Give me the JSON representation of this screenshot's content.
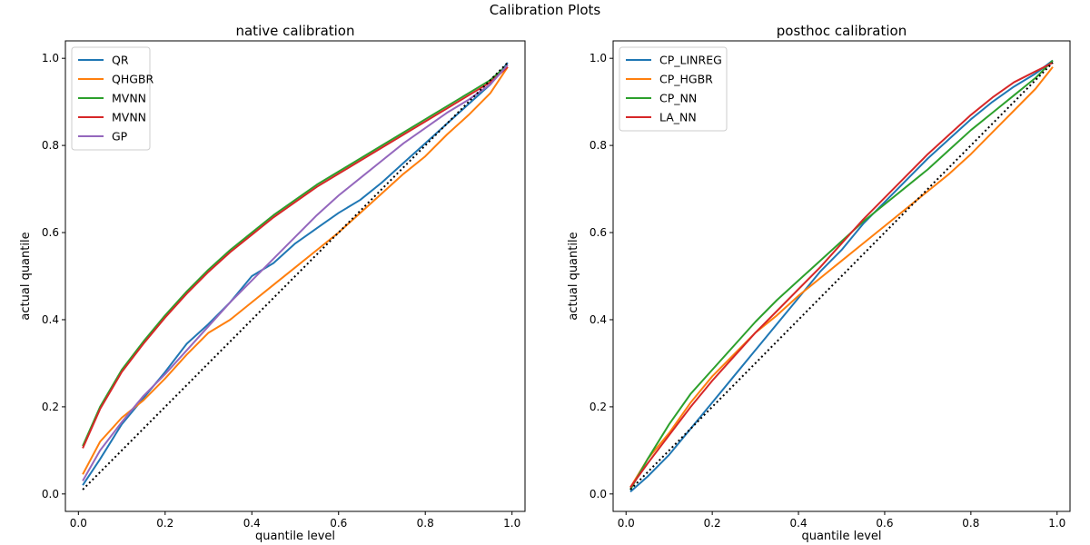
{
  "figure": {
    "title": "Calibration Plots"
  },
  "colors": {
    "blue": "#1f77b4",
    "orange": "#ff7f0e",
    "green": "#2ca02c",
    "red": "#d62728",
    "purple": "#9467bd",
    "reference": "#000000"
  },
  "chart_data": [
    {
      "type": "line",
      "title": "native calibration",
      "xlabel": "quantile level",
      "ylabel": "actual quantile",
      "xlim": [
        -0.03,
        1.03
      ],
      "ylim": [
        -0.04,
        1.04
      ],
      "xticks": [
        0.0,
        0.2,
        0.4,
        0.6,
        0.8,
        1.0
      ],
      "yticks": [
        0.0,
        0.2,
        0.4,
        0.6,
        0.8,
        1.0
      ],
      "xtick_labels": [
        "0.0",
        "0.2",
        "0.4",
        "0.6",
        "0.8",
        "1.0"
      ],
      "ytick_labels": [
        "0.0",
        "0.2",
        "0.4",
        "0.6",
        "0.8",
        "1.0"
      ],
      "grid": false,
      "legend_position": "top-left",
      "reference_line": {
        "style": "dotted",
        "x": [
          0.01,
          0.99
        ],
        "y": [
          0.01,
          0.99
        ]
      },
      "series": [
        {
          "name": "QR",
          "color": "#1f77b4",
          "x": [
            0.01,
            0.05,
            0.1,
            0.15,
            0.2,
            0.25,
            0.3,
            0.35,
            0.4,
            0.45,
            0.5,
            0.55,
            0.6,
            0.65,
            0.7,
            0.75,
            0.8,
            0.85,
            0.9,
            0.95,
            0.99
          ],
          "y": [
            0.02,
            0.08,
            0.16,
            0.22,
            0.28,
            0.345,
            0.39,
            0.44,
            0.5,
            0.53,
            0.575,
            0.61,
            0.645,
            0.675,
            0.715,
            0.76,
            0.805,
            0.85,
            0.895,
            0.94,
            0.99
          ]
        },
        {
          "name": "QHGBR",
          "color": "#ff7f0e",
          "x": [
            0.01,
            0.05,
            0.1,
            0.15,
            0.2,
            0.25,
            0.3,
            0.35,
            0.4,
            0.45,
            0.5,
            0.55,
            0.6,
            0.65,
            0.7,
            0.75,
            0.8,
            0.85,
            0.9,
            0.95,
            0.99
          ],
          "y": [
            0.045,
            0.12,
            0.175,
            0.215,
            0.265,
            0.32,
            0.37,
            0.4,
            0.44,
            0.48,
            0.52,
            0.56,
            0.6,
            0.645,
            0.69,
            0.735,
            0.775,
            0.825,
            0.87,
            0.92,
            0.98
          ]
        },
        {
          "name": "MVNN",
          "color": "#2ca02c",
          "x": [
            0.01,
            0.05,
            0.1,
            0.15,
            0.2,
            0.25,
            0.3,
            0.35,
            0.4,
            0.45,
            0.5,
            0.55,
            0.6,
            0.65,
            0.7,
            0.75,
            0.8,
            0.85,
            0.9,
            0.95,
            0.99
          ],
          "y": [
            0.11,
            0.2,
            0.285,
            0.35,
            0.41,
            0.465,
            0.515,
            0.56,
            0.6,
            0.64,
            0.675,
            0.71,
            0.74,
            0.77,
            0.8,
            0.83,
            0.86,
            0.89,
            0.92,
            0.95,
            0.985
          ]
        },
        {
          "name": "MVNN",
          "color": "#d62728",
          "x": [
            0.01,
            0.05,
            0.1,
            0.15,
            0.2,
            0.25,
            0.3,
            0.35,
            0.4,
            0.45,
            0.5,
            0.55,
            0.6,
            0.65,
            0.7,
            0.75,
            0.8,
            0.85,
            0.9,
            0.95,
            0.99
          ],
          "y": [
            0.105,
            0.195,
            0.28,
            0.345,
            0.405,
            0.46,
            0.51,
            0.555,
            0.595,
            0.635,
            0.67,
            0.705,
            0.735,
            0.765,
            0.795,
            0.825,
            0.855,
            0.885,
            0.915,
            0.945,
            0.98
          ]
        },
        {
          "name": "GP",
          "color": "#9467bd",
          "x": [
            0.01,
            0.05,
            0.1,
            0.15,
            0.2,
            0.25,
            0.3,
            0.35,
            0.4,
            0.45,
            0.5,
            0.55,
            0.6,
            0.65,
            0.7,
            0.75,
            0.8,
            0.85,
            0.9,
            0.95,
            0.99
          ],
          "y": [
            0.03,
            0.1,
            0.165,
            0.225,
            0.275,
            0.33,
            0.385,
            0.44,
            0.49,
            0.54,
            0.59,
            0.64,
            0.685,
            0.725,
            0.765,
            0.805,
            0.84,
            0.875,
            0.905,
            0.94,
            0.985
          ]
        }
      ]
    },
    {
      "type": "line",
      "title": "posthoc calibration",
      "xlabel": "quantile level",
      "ylabel": "actual quantile",
      "xlim": [
        -0.03,
        1.03
      ],
      "ylim": [
        -0.04,
        1.04
      ],
      "xticks": [
        0.0,
        0.2,
        0.4,
        0.6,
        0.8,
        1.0
      ],
      "yticks": [
        0.0,
        0.2,
        0.4,
        0.6,
        0.8,
        1.0
      ],
      "xtick_labels": [
        "0.0",
        "0.2",
        "0.4",
        "0.6",
        "0.8",
        "1.0"
      ],
      "ytick_labels": [
        "0.0",
        "0.2",
        "0.4",
        "0.6",
        "0.8",
        "1.0"
      ],
      "grid": false,
      "legend_position": "top-left",
      "reference_line": {
        "style": "dotted",
        "x": [
          0.01,
          0.99
        ],
        "y": [
          0.01,
          0.99
        ]
      },
      "series": [
        {
          "name": "CP_LINREG",
          "color": "#1f77b4",
          "x": [
            0.01,
            0.05,
            0.1,
            0.15,
            0.2,
            0.25,
            0.3,
            0.35,
            0.4,
            0.45,
            0.5,
            0.55,
            0.6,
            0.65,
            0.7,
            0.75,
            0.8,
            0.85,
            0.9,
            0.95,
            0.99
          ],
          "y": [
            0.005,
            0.04,
            0.09,
            0.15,
            0.21,
            0.27,
            0.33,
            0.39,
            0.45,
            0.51,
            0.56,
            0.62,
            0.67,
            0.72,
            0.77,
            0.815,
            0.86,
            0.9,
            0.935,
            0.965,
            0.995
          ]
        },
        {
          "name": "CP_HGBR",
          "color": "#ff7f0e",
          "x": [
            0.01,
            0.05,
            0.1,
            0.15,
            0.2,
            0.25,
            0.3,
            0.35,
            0.4,
            0.45,
            0.5,
            0.55,
            0.6,
            0.65,
            0.7,
            0.75,
            0.8,
            0.85,
            0.9,
            0.95,
            0.99
          ],
          "y": [
            0.015,
            0.08,
            0.14,
            0.21,
            0.27,
            0.32,
            0.37,
            0.41,
            0.455,
            0.495,
            0.535,
            0.575,
            0.615,
            0.655,
            0.695,
            0.735,
            0.78,
            0.83,
            0.88,
            0.93,
            0.98
          ]
        },
        {
          "name": "CP_NN",
          "color": "#2ca02c",
          "x": [
            0.01,
            0.05,
            0.1,
            0.15,
            0.2,
            0.25,
            0.3,
            0.35,
            0.4,
            0.45,
            0.5,
            0.55,
            0.6,
            0.65,
            0.7,
            0.75,
            0.8,
            0.85,
            0.9,
            0.95,
            0.99
          ],
          "y": [
            0.01,
            0.08,
            0.16,
            0.23,
            0.285,
            0.34,
            0.395,
            0.445,
            0.49,
            0.535,
            0.58,
            0.625,
            0.665,
            0.705,
            0.745,
            0.79,
            0.835,
            0.875,
            0.915,
            0.955,
            0.995
          ]
        },
        {
          "name": "LA_NN",
          "color": "#d62728",
          "x": [
            0.01,
            0.05,
            0.1,
            0.15,
            0.2,
            0.25,
            0.3,
            0.35,
            0.4,
            0.45,
            0.5,
            0.55,
            0.6,
            0.65,
            0.7,
            0.75,
            0.8,
            0.85,
            0.9,
            0.95,
            0.99
          ],
          "y": [
            0.015,
            0.07,
            0.135,
            0.2,
            0.26,
            0.315,
            0.37,
            0.42,
            0.47,
            0.52,
            0.575,
            0.63,
            0.68,
            0.73,
            0.78,
            0.825,
            0.87,
            0.91,
            0.945,
            0.97,
            0.99
          ]
        }
      ]
    }
  ]
}
